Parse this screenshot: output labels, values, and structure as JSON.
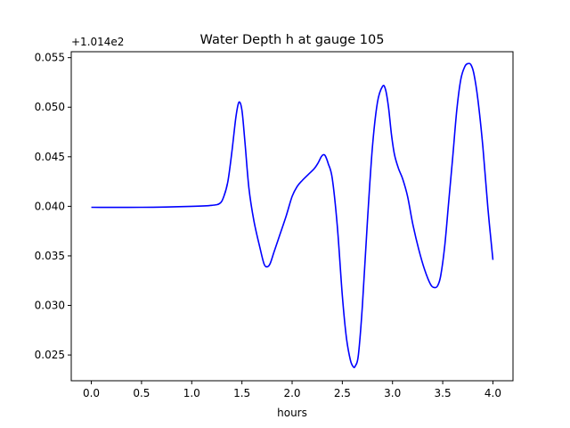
{
  "chart_data": {
    "type": "line",
    "title": "Water Depth h at gauge 105",
    "xlabel": "hours",
    "ylabel": "",
    "offset_label": "+1.014e2",
    "y_offset": 101.4,
    "xlim": [
      -0.2,
      4.2
    ],
    "ylim": [
      0.0224,
      0.0556
    ],
    "x_ticks": [
      0.0,
      0.5,
      1.0,
      1.5,
      2.0,
      2.5,
      3.0,
      3.5,
      4.0
    ],
    "x_tick_labels": [
      "0.0",
      "0.5",
      "1.0",
      "1.5",
      "2.0",
      "2.5",
      "3.0",
      "3.5",
      "4.0"
    ],
    "y_ticks": [
      0.025,
      0.03,
      0.035,
      0.04,
      0.045,
      0.05,
      0.055
    ],
    "y_tick_labels": [
      "0.025",
      "0.030",
      "0.035",
      "0.040",
      "0.045",
      "0.050",
      "0.055"
    ],
    "grid": false,
    "series": [
      {
        "color": "#0000ff",
        "x": [
          0.0,
          0.5,
          1.0,
          1.2,
          1.28,
          1.32,
          1.36,
          1.4,
          1.44,
          1.47,
          1.5,
          1.53,
          1.57,
          1.62,
          1.68,
          1.72,
          1.75,
          1.78,
          1.82,
          1.88,
          1.94,
          2.0,
          2.05,
          2.1,
          2.16,
          2.22,
          2.26,
          2.29,
          2.31,
          2.33,
          2.36,
          2.4,
          2.45,
          2.5,
          2.54,
          2.58,
          2.61,
          2.63,
          2.66,
          2.7,
          2.75,
          2.8,
          2.85,
          2.9,
          2.93,
          2.96,
          2.99,
          3.02,
          3.06,
          3.1,
          3.15,
          3.2,
          3.26,
          3.32,
          3.38,
          3.42,
          3.45,
          3.48,
          3.52,
          3.56,
          3.6,
          3.64,
          3.68,
          3.72,
          3.75,
          3.78,
          3.81,
          3.85,
          3.9,
          3.95,
          4.0
        ],
        "y": [
          0.0399,
          0.0399,
          0.04,
          0.0401,
          0.0403,
          0.041,
          0.0425,
          0.0455,
          0.049,
          0.0505,
          0.0497,
          0.0465,
          0.0418,
          0.0385,
          0.0358,
          0.0342,
          0.0339,
          0.0342,
          0.0354,
          0.0372,
          0.039,
          0.041,
          0.042,
          0.0426,
          0.0432,
          0.0438,
          0.0444,
          0.045,
          0.0452,
          0.0451,
          0.0443,
          0.0428,
          0.038,
          0.031,
          0.0268,
          0.0245,
          0.0238,
          0.0239,
          0.025,
          0.03,
          0.0385,
          0.046,
          0.0505,
          0.0521,
          0.0518,
          0.05,
          0.0472,
          0.0452,
          0.0438,
          0.0428,
          0.041,
          0.0383,
          0.0357,
          0.0336,
          0.0321,
          0.0318,
          0.032,
          0.033,
          0.036,
          0.0405,
          0.045,
          0.0497,
          0.0528,
          0.0541,
          0.0544,
          0.0543,
          0.0534,
          0.0508,
          0.046,
          0.0398,
          0.0346
        ]
      }
    ]
  }
}
